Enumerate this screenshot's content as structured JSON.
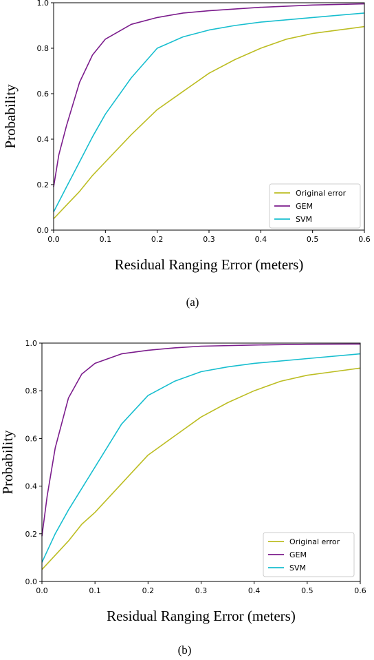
{
  "chart_data": [
    {
      "type": "line",
      "xlabel": "Residual Ranging Error (meters)",
      "ylabel": "Probability",
      "xlim": [
        0,
        0.6
      ],
      "ylim": [
        0,
        1.0
      ],
      "xticks": [
        "0.0",
        "0.1",
        "0.2",
        "0.3",
        "0.4",
        "0.5",
        "0.6"
      ],
      "yticks": [
        "0.0",
        "0.2",
        "0.4",
        "0.6",
        "0.8",
        "1.0"
      ],
      "grid": false,
      "legend_position": "bottom-right",
      "caption": "(a)",
      "series": [
        {
          "name": "Original error",
          "color": "#bcbd22",
          "x": [
            0,
            0.025,
            0.05,
            0.075,
            0.1,
            0.15,
            0.2,
            0.25,
            0.3,
            0.35,
            0.4,
            0.45,
            0.5,
            0.55,
            0.6
          ],
          "y": [
            0.05,
            0.11,
            0.17,
            0.24,
            0.3,
            0.42,
            0.53,
            0.61,
            0.69,
            0.75,
            0.8,
            0.84,
            0.865,
            0.88,
            0.895
          ]
        },
        {
          "name": "GEM",
          "color": "#7b1c8c",
          "x": [
            0,
            0.01,
            0.025,
            0.05,
            0.075,
            0.1,
            0.15,
            0.2,
            0.25,
            0.3,
            0.4,
            0.5,
            0.6
          ],
          "y": [
            0.19,
            0.33,
            0.46,
            0.65,
            0.77,
            0.84,
            0.905,
            0.935,
            0.955,
            0.965,
            0.98,
            0.99,
            0.995
          ]
        },
        {
          "name": "SVM",
          "color": "#17becf",
          "x": [
            0,
            0.025,
            0.05,
            0.075,
            0.1,
            0.15,
            0.2,
            0.25,
            0.3,
            0.35,
            0.4,
            0.5,
            0.6
          ],
          "y": [
            0.08,
            0.19,
            0.3,
            0.41,
            0.51,
            0.67,
            0.8,
            0.85,
            0.88,
            0.9,
            0.915,
            0.935,
            0.955
          ]
        }
      ]
    },
    {
      "type": "line",
      "xlabel": "Residual Ranging Error (meters)",
      "ylabel": "Probability",
      "xlim": [
        0,
        0.6
      ],
      "ylim": [
        0,
        1.0
      ],
      "xticks": [
        "0.0",
        "0.1",
        "0.2",
        "0.3",
        "0.4",
        "0.5",
        "0.6"
      ],
      "yticks": [
        "0.0",
        "0.2",
        "0.4",
        "0.6",
        "0.8",
        "1.0"
      ],
      "grid": false,
      "legend_position": "bottom-right",
      "caption": "(b)",
      "series": [
        {
          "name": "Original error",
          "color": "#bcbd22",
          "x": [
            0,
            0.025,
            0.05,
            0.075,
            0.1,
            0.15,
            0.2,
            0.25,
            0.3,
            0.35,
            0.4,
            0.45,
            0.5,
            0.55,
            0.6
          ],
          "y": [
            0.05,
            0.11,
            0.17,
            0.24,
            0.29,
            0.41,
            0.53,
            0.61,
            0.69,
            0.75,
            0.8,
            0.84,
            0.865,
            0.88,
            0.895
          ]
        },
        {
          "name": "GEM",
          "color": "#7b1c8c",
          "x": [
            0,
            0.01,
            0.025,
            0.05,
            0.075,
            0.1,
            0.15,
            0.2,
            0.25,
            0.3,
            0.4,
            0.5,
            0.6
          ],
          "y": [
            0.19,
            0.36,
            0.56,
            0.77,
            0.87,
            0.915,
            0.955,
            0.97,
            0.98,
            0.987,
            0.992,
            0.995,
            0.996
          ]
        },
        {
          "name": "SVM",
          "color": "#17becf",
          "x": [
            0,
            0.025,
            0.05,
            0.075,
            0.1,
            0.15,
            0.2,
            0.25,
            0.3,
            0.35,
            0.4,
            0.5,
            0.6
          ],
          "y": [
            0.08,
            0.2,
            0.3,
            0.39,
            0.48,
            0.66,
            0.78,
            0.84,
            0.88,
            0.9,
            0.915,
            0.935,
            0.955
          ]
        }
      ]
    }
  ]
}
